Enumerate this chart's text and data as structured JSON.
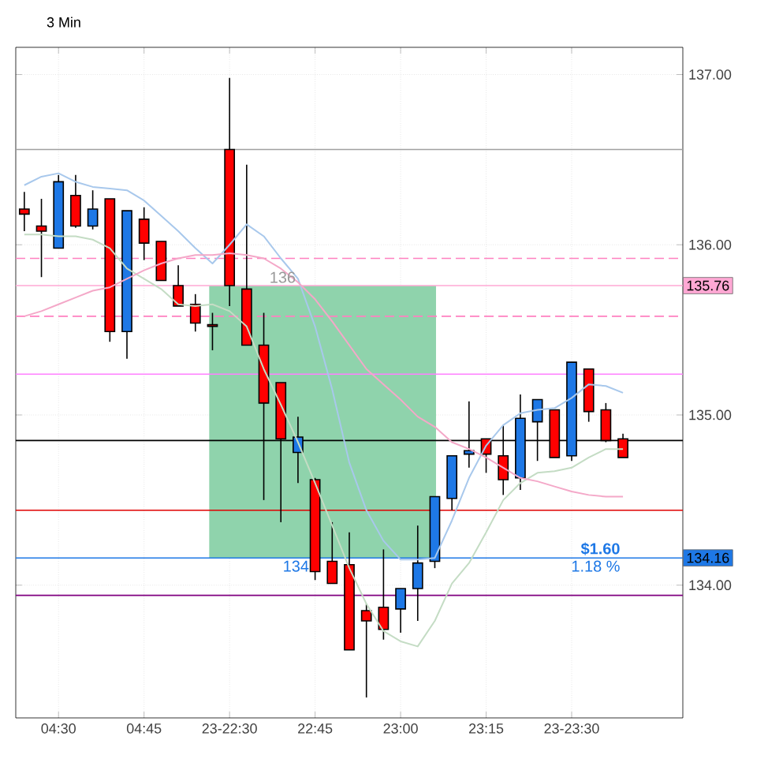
{
  "chart_data": {
    "type": "candlestick",
    "title": "3 Min",
    "categories": [
      null,
      null,
      "04:30",
      null,
      null,
      null,
      null,
      "04:45",
      null,
      null,
      null,
      null,
      "23-22:30",
      null,
      null,
      null,
      null,
      "22:45",
      null,
      null,
      null,
      null,
      "23:00",
      null,
      null,
      null,
      null,
      "23:15",
      null,
      null,
      null,
      null,
      "23-23:30",
      null,
      null,
      null
    ],
    "ohlc": [
      [
        136.21,
        136.31,
        136.08,
        136.18
      ],
      [
        136.11,
        136.27,
        135.81,
        136.08
      ],
      [
        135.98,
        136.41,
        135.98,
        136.37
      ],
      [
        136.29,
        136.41,
        136.1,
        136.11
      ],
      [
        136.11,
        136.32,
        136.09,
        136.21
      ],
      [
        136.27,
        136.27,
        135.43,
        135.49
      ],
      [
        135.49,
        136.2,
        135.33,
        136.2
      ],
      [
        136.15,
        136.22,
        135.91,
        136.01
      ],
      [
        136.02,
        136.02,
        135.79,
        135.79
      ],
      [
        135.76,
        135.88,
        135.64,
        135.64
      ],
      [
        135.65,
        135.71,
        135.49,
        135.54
      ],
      [
        135.53,
        135.6,
        135.38,
        135.52
      ],
      [
        136.56,
        136.98,
        135.64,
        135.76
      ],
      [
        135.74,
        136.47,
        135.41,
        135.41
      ],
      [
        135.41,
        135.6,
        134.5,
        135.07
      ],
      [
        135.19,
        135.19,
        134.37,
        134.86
      ],
      [
        134.78,
        134.99,
        134.6,
        134.87
      ],
      [
        134.62,
        134.63,
        134.03,
        134.08
      ],
      [
        134.14,
        134.37,
        134.01,
        134.01
      ],
      [
        134.12,
        134.31,
        133.62,
        133.62
      ],
      [
        133.85,
        133.89,
        133.34,
        133.79
      ],
      [
        133.87,
        134.21,
        133.68,
        133.74
      ],
      [
        133.86,
        133.98,
        133.72,
        133.98
      ],
      [
        133.98,
        134.35,
        133.79,
        134.13
      ],
      [
        134.14,
        134.52,
        134.1,
        134.52
      ],
      [
        134.51,
        134.76,
        134.44,
        134.76
      ],
      [
        134.77,
        135.08,
        134.69,
        134.79
      ],
      [
        134.86,
        134.86,
        134.66,
        134.77
      ],
      [
        134.76,
        134.94,
        134.53,
        134.62
      ],
      [
        134.63,
        135.12,
        134.56,
        134.98
      ],
      [
        134.96,
        135.09,
        134.73,
        135.09
      ],
      [
        135.03,
        135.03,
        134.75,
        134.75
      ],
      [
        134.76,
        135.31,
        134.73,
        135.31
      ],
      [
        135.27,
        135.27,
        134.96,
        135.02
      ],
      [
        135.03,
        135.07,
        134.84,
        134.85
      ],
      [
        134.86,
        134.89,
        134.75,
        134.75
      ]
    ],
    "colors": [
      "#ff0000",
      "#ff0000",
      "#1e78e6",
      "#ff0000",
      "#1e78e6",
      "#ff0000",
      "#1e78e6",
      "#ff0000",
      "#ff0000",
      "#ff0000",
      "#ff0000",
      "#ff0000",
      "#ff0000",
      "#ff0000",
      "#ff0000",
      "#ff0000",
      "#1e78e6",
      "#ff0000",
      "#ff0000",
      "#ff0000",
      "#ff0000",
      "#ff0000",
      "#1e78e6",
      "#1e78e6",
      "#1e78e6",
      "#1e78e6",
      "#1e78e6",
      "#ff0000",
      "#ff0000",
      "#1e78e6",
      "#1e78e6",
      "#ff0000",
      "#1e78e6",
      "#ff0000",
      "#ff0000",
      "#ff0000"
    ],
    "series": [
      {
        "type": "line",
        "color": "#a8c8ec",
        "values": [
          136.35,
          136.4,
          136.42,
          136.37,
          136.34,
          136.33,
          136.32,
          136.26,
          136.17,
          136.08,
          135.98,
          135.89,
          136.0,
          136.12,
          136.05,
          135.92,
          135.8,
          135.52,
          135.15,
          134.72,
          134.44,
          134.26,
          134.15,
          134.15,
          134.16,
          134.38,
          134.63,
          134.82,
          134.94,
          135.01,
          135.03,
          135.04,
          135.1,
          135.18,
          135.17,
          135.13
        ]
      },
      {
        "type": "line",
        "color": "#c4dcc4",
        "values": [
          136.06,
          136.06,
          136.05,
          136.05,
          136.03,
          135.98,
          135.86,
          135.8,
          135.74,
          135.65,
          135.64,
          135.65,
          135.61,
          135.52,
          135.27,
          135.06,
          134.84,
          134.6,
          134.35,
          134.1,
          133.89,
          133.73,
          133.67,
          133.64,
          133.79,
          134.01,
          134.13,
          134.31,
          134.5,
          134.6,
          134.66,
          134.67,
          134.69,
          134.75,
          134.8,
          134.8
        ]
      },
      {
        "type": "line",
        "color": "#f4a8c8",
        "values": [
          135.58,
          135.61,
          135.65,
          135.69,
          135.73,
          135.75,
          135.8,
          135.85,
          135.89,
          135.92,
          135.94,
          135.94,
          135.95,
          135.94,
          135.92,
          135.86,
          135.78,
          135.68,
          135.55,
          135.41,
          135.27,
          135.18,
          135.09,
          134.99,
          134.93,
          134.84,
          134.8,
          134.75,
          134.69,
          134.63,
          134.61,
          134.58,
          134.55,
          134.53,
          134.52,
          134.52
        ]
      }
    ],
    "bands": [
      {
        "axis": "y",
        "from": 134.16,
        "to": 135.76,
        "color": "#8fd3ac"
      }
    ],
    "ref_lines": [
      {
        "axis": "y",
        "value": 136.56,
        "color": "#a0a0a0"
      },
      {
        "axis": "y",
        "value": 135.92,
        "color": "#ff80c0",
        "line_style": "dashed"
      },
      {
        "axis": "y",
        "value": 135.76,
        "color": "#ffa8d4",
        "label": "135.76"
      },
      {
        "axis": "y",
        "value": 135.58,
        "color": "#ff80c0",
        "line_style": "dashed"
      },
      {
        "axis": "y",
        "value": 135.24,
        "color": "#ff80ff"
      },
      {
        "axis": "y",
        "value": 134.85,
        "color": "#000000"
      },
      {
        "axis": "y",
        "value": 134.44,
        "color": "#e00000"
      },
      {
        "axis": "y",
        "value": 134.16,
        "color": "#1e78e6",
        "label": "134.16"
      },
      {
        "axis": "y",
        "value": 133.94,
        "color": "#800080"
      }
    ],
    "annotations": [
      {
        "text": "136",
        "y": 135.76
      },
      {
        "text": "134",
        "y": 134.16
      },
      {
        "text": "$1.60",
        "y": 134.16
      },
      {
        "text": "1.18 %",
        "y": 134.16
      }
    ],
    "ylim": [
      133.22,
      137.16
    ],
    "yticks": [
      {
        "value": 134,
        "label": "134.00"
      },
      {
        "value": 135,
        "label": "135.00"
      },
      {
        "value": 136,
        "label": "136.00"
      },
      {
        "value": 137,
        "label": "137.00"
      }
    ],
    "grid": true
  }
}
